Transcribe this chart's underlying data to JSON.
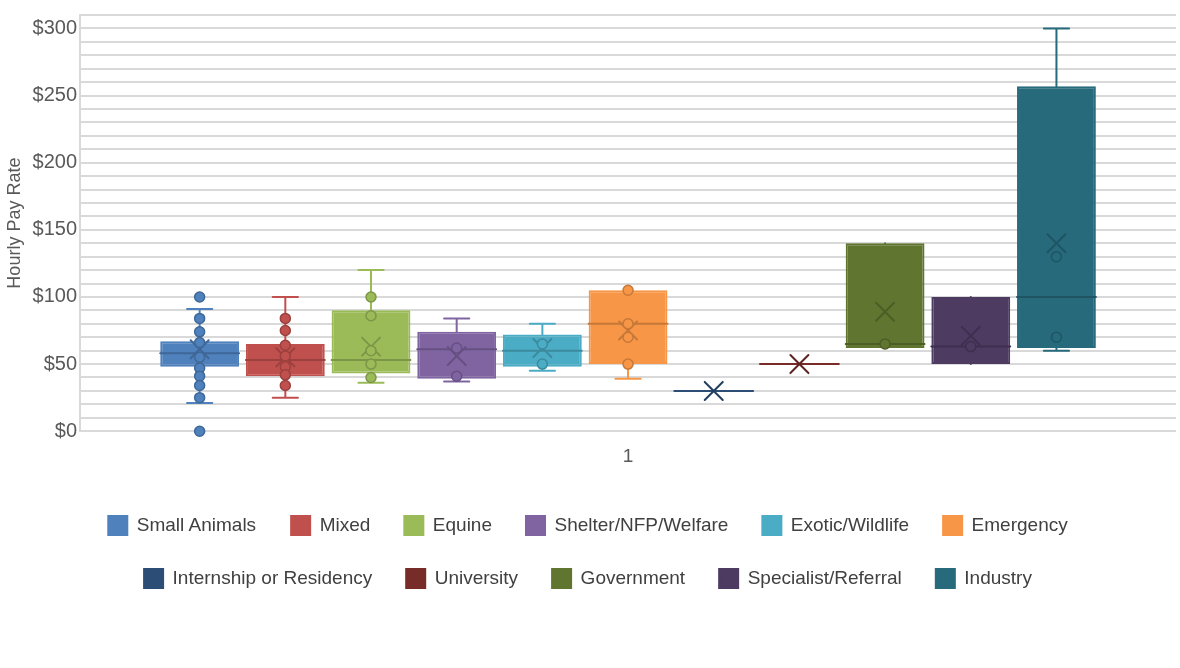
{
  "chart_data": {
    "type": "box",
    "ylabel": "Hourly Pay Rate",
    "categories": [
      "1"
    ],
    "ylim": [
      0,
      310
    ],
    "yticks": [
      {
        "value": 0,
        "label": "$0"
      },
      {
        "value": 10,
        "label": null
      },
      {
        "value": 20,
        "label": null
      },
      {
        "value": 30,
        "label": null
      },
      {
        "value": 40,
        "label": null
      },
      {
        "value": 50,
        "label": "$50"
      },
      {
        "value": 60,
        "label": null
      },
      {
        "value": 70,
        "label": null
      },
      {
        "value": 80,
        "label": null
      },
      {
        "value": 90,
        "label": null
      },
      {
        "value": 100,
        "label": "$100"
      },
      {
        "value": 110,
        "label": null
      },
      {
        "value": 120,
        "label": null
      },
      {
        "value": 130,
        "label": null
      },
      {
        "value": 140,
        "label": null
      },
      {
        "value": 150,
        "label": "$150"
      },
      {
        "value": 160,
        "label": null
      },
      {
        "value": 170,
        "label": null
      },
      {
        "value": 180,
        "label": null
      },
      {
        "value": 190,
        "label": null
      },
      {
        "value": 200,
        "label": "$200"
      },
      {
        "value": 210,
        "label": null
      },
      {
        "value": 220,
        "label": null
      },
      {
        "value": 230,
        "label": null
      },
      {
        "value": 240,
        "label": null
      },
      {
        "value": 250,
        "label": "$250"
      },
      {
        "value": 260,
        "label": null
      },
      {
        "value": 270,
        "label": null
      },
      {
        "value": 280,
        "label": null
      },
      {
        "value": 290,
        "label": null
      },
      {
        "value": 300,
        "label": "$300"
      },
      {
        "value": 310,
        "label": null
      }
    ],
    "grid": "y",
    "legend": "bottom",
    "marker": "circle",
    "series": [
      {
        "name": "Small Animals",
        "color": "#4f81bd",
        "boxes": [
          {
            "low": 21,
            "q1": 48,
            "median": 58,
            "q3": 67,
            "high": 91,
            "mean": 61,
            "outliers": [
              100,
              84,
              74,
              66,
              55,
              47,
              41,
              34,
              25,
              0
            ]
          }
        ]
      },
      {
        "name": "Mixed",
        "color": "#c0504d",
        "boxes": [
          {
            "low": 25,
            "q1": 41,
            "median": 53,
            "q3": 65,
            "high": 100,
            "mean": 55,
            "outliers": [
              84,
              75,
              64,
              56,
              48,
              42,
              34
            ]
          }
        ]
      },
      {
        "name": "Equine",
        "color": "#9bbb59",
        "boxes": [
          {
            "low": 36,
            "q1": 43,
            "median": 53,
            "q3": 90,
            "high": 120,
            "mean": 63,
            "outliers": [
              100,
              86,
              60,
              50,
              40
            ]
          }
        ]
      },
      {
        "name": "Shelter/NFP/Welfare",
        "color": "#8064a2",
        "boxes": [
          {
            "low": 37,
            "q1": 39,
            "median": 61,
            "q3": 74,
            "high": 84,
            "mean": 56,
            "outliers": [
              62,
              41
            ]
          }
        ]
      },
      {
        "name": "Exotic/Wildlife",
        "color": "#4bacc6",
        "boxes": [
          {
            "low": 45,
            "q1": 48,
            "median": 60,
            "q3": 72,
            "high": 80,
            "mean": 62,
            "outliers": [
              65,
              50
            ]
          }
        ]
      },
      {
        "name": "Emergency",
        "color": "#f79646",
        "boxes": [
          {
            "low": 39,
            "q1": 50,
            "median": 80,
            "q3": 105,
            "high": 105,
            "mean": 75,
            "outliers": [
              105,
              80,
              70,
              50
            ]
          }
        ]
      },
      {
        "name": "Internship or Residency",
        "color": "#2c4d75",
        "boxes": [
          {
            "low": 30,
            "q1": 30,
            "median": 30,
            "q3": 30,
            "high": 30,
            "mean": 30
          }
        ]
      },
      {
        "name": "University",
        "color": "#772c2a",
        "boxes": [
          {
            "low": 50,
            "q1": 50,
            "median": 50,
            "q3": 50,
            "high": 50,
            "mean": 50
          }
        ]
      },
      {
        "name": "Government",
        "color": "#5f7530",
        "boxes": [
          {
            "low": 62,
            "q1": 62,
            "median": 65,
            "q3": 140,
            "high": 140,
            "mean": 89,
            "outliers": [
              65
            ]
          }
        ]
      },
      {
        "name": "Specialist/Referral",
        "color": "#4d3b62",
        "boxes": [
          {
            "low": 50,
            "q1": 50,
            "median": 63,
            "q3": 100,
            "high": 100,
            "mean": 71,
            "outliers": [
              63
            ]
          }
        ]
      },
      {
        "name": "Industry",
        "color": "#276a7c",
        "boxes": [
          {
            "low": 60,
            "q1": 62,
            "median": 100,
            "q3": 257,
            "high": 300,
            "mean": 140,
            "outliers": [
              130,
              70
            ]
          }
        ]
      }
    ]
  }
}
